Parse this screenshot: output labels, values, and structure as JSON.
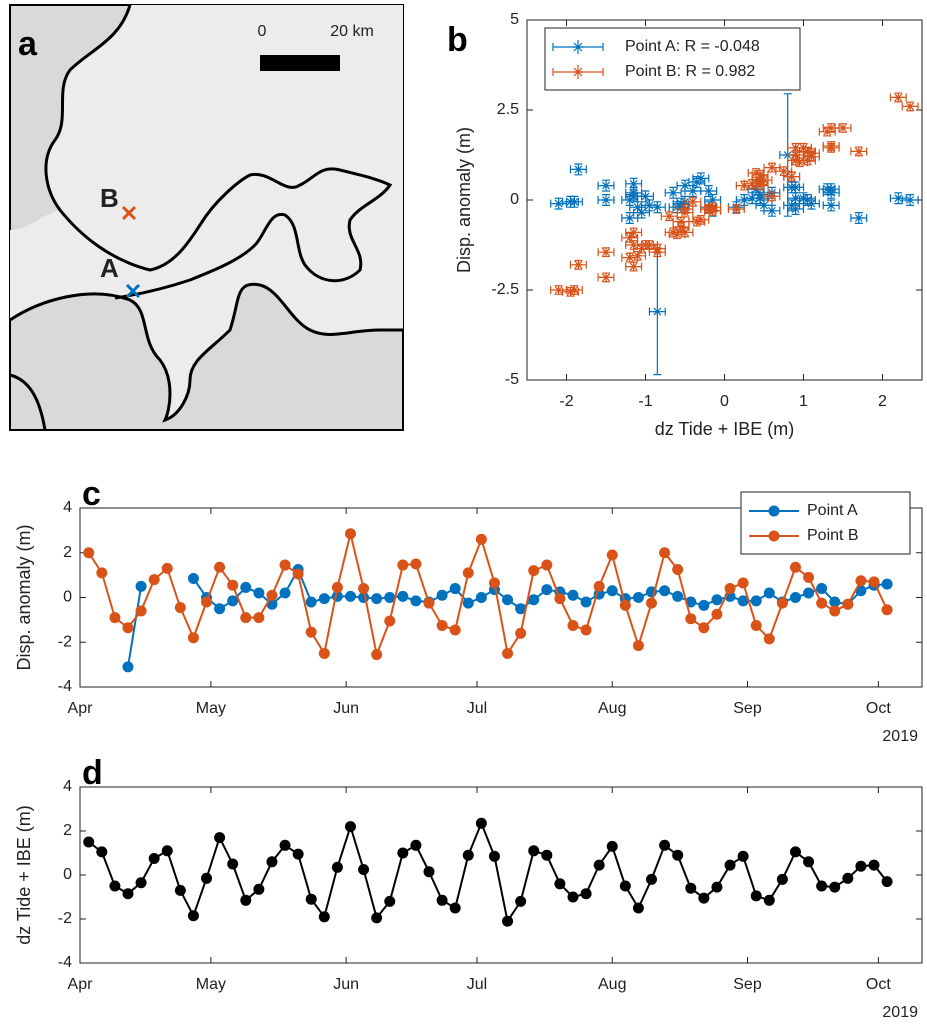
{
  "map": {
    "label": "a",
    "scale_labels": [
      "0",
      "20 km"
    ],
    "points": [
      {
        "name": "B",
        "color": "#d95319"
      },
      {
        "name": "A",
        "color": "#0072bd"
      }
    ]
  },
  "chart_data": [
    {
      "type": "scatter",
      "label": "b",
      "xlabel": "dz Tide + IBE (m)",
      "ylabel": "Disp. anomaly (m)",
      "xlim": [
        -2.5,
        2.5
      ],
      "ylim": [
        -5,
        5
      ],
      "xticks": [
        -2,
        -1,
        0,
        1,
        2
      ],
      "yticks": [
        -5,
        -2.5,
        0,
        2.5,
        5
      ],
      "legend": "upper left",
      "series": [
        {
          "name": "Point A: R = -0.048",
          "color": "#0072bd",
          "xerr": 0.1,
          "x": [
            -0.85,
            -0.35,
            -1.85,
            -0.15,
            1.7,
            0.5,
            -1.15,
            -0.65,
            0.6,
            1.35,
            0.8,
            -1.1,
            -1.9,
            0.35,
            2.2,
            0.25,
            -1.95,
            -1.2,
            1.0,
            1.35,
            0.15,
            -1.15,
            -1.5,
            0.9,
            2.35,
            0.85,
            -2.1,
            -1.2,
            1.1,
            0.9,
            -0.4,
            -1.0,
            -0.85,
            0.45,
            1.3,
            -0.5,
            -1.5,
            -0.2,
            1.35,
            0.9,
            -0.6,
            -1.05,
            -0.55,
            0.45,
            0.85,
            -0.95,
            -1.15,
            -0.2,
            1.05,
            0.6,
            -0.5,
            -0.55,
            -0.15,
            0.4,
            0.45,
            -0.3
          ],
          "values": [
            -3.1,
            0.5,
            0.85,
            0.0,
            -0.5,
            -0.15,
            0.45,
            0.2,
            -0.3,
            0.2,
            1.25,
            -0.2,
            -0.05,
            0.05,
            0.05,
            0.0,
            -0.05,
            0.0,
            0.05,
            -0.15,
            -0.2,
            0.1,
            0.4,
            -0.25,
            0.0,
            0.35,
            -0.1,
            -0.5,
            -0.1,
            0.35,
            0.25,
            0.1,
            -0.2,
            0.15,
            0.3,
            -0.05,
            0.0,
            0.25,
            0.3,
            0.05,
            -0.2,
            -0.35,
            -0.1,
            0.05,
            -0.15,
            -0.15,
            0.2,
            -0.2,
            0.0,
            0.2,
            0.4,
            -0.2,
            -0.3,
            0.3,
            0.55,
            0.6
          ],
          "yerr": [
            1.75,
            0.15,
            0.15,
            0.15,
            0.15,
            0.15,
            0.15,
            0.15,
            0.15,
            0.15,
            1.7,
            0.15,
            0.15,
            0.15,
            0.15,
            0.15,
            0.15,
            0.15,
            0.15,
            0.15,
            0.15,
            0.15,
            0.15,
            0.15,
            0.15,
            0.15,
            0.15,
            0.15,
            0.15,
            0.15,
            0.15,
            0.15,
            0.15,
            0.15,
            0.15,
            0.15,
            0.15,
            0.15,
            0.15,
            0.15,
            0.15,
            0.15,
            0.15,
            0.15,
            0.15,
            0.15,
            0.15,
            0.15,
            0.15,
            0.15,
            0.15,
            0.15,
            0.15,
            0.15,
            0.15,
            0.15
          ]
        },
        {
          "name": "Point B: R = 0.982",
          "color": "#d95319",
          "xerr": 0.1,
          "yerr": 0.12,
          "x": [
            1.5,
            1.05,
            -0.5,
            -0.85,
            -0.35,
            0.75,
            1.1,
            -0.7,
            -1.85,
            -0.15,
            1.7,
            0.5,
            -1.15,
            -0.65,
            0.6,
            1.35,
            0.95,
            -1.1,
            -1.9,
            0.35,
            2.2,
            0.25,
            -1.95,
            -1.2,
            1.0,
            1.35,
            0.15,
            -1.15,
            -1.5,
            0.9,
            2.35,
            0.85,
            -2.1,
            -1.2,
            1.1,
            0.9,
            -0.4,
            -1.0,
            -0.85,
            0.45,
            1.3,
            -0.5,
            -1.5,
            -0.2,
            1.35,
            0.9,
            -0.6,
            -1.05,
            -0.55,
            0.45,
            0.85,
            -0.95,
            -1.15,
            -0.2,
            1.05,
            0.6,
            -0.5,
            -0.55,
            -0.15,
            0.4,
            0.45,
            -0.3
          ],
          "values": [
            2.0,
            1.1,
            -0.9,
            -1.35,
            -0.6,
            0.8,
            1.3,
            -0.45,
            -1.8,
            -0.2,
            1.35,
            0.55,
            -0.9,
            -0.9,
            0.1,
            1.45,
            1.05,
            -1.55,
            -2.5,
            0.45,
            2.85,
            0.4,
            -2.55,
            -1.05,
            1.45,
            1.5,
            -0.25,
            -1.25,
            -1.45,
            1.1,
            2.6,
            0.65,
            -2.5,
            -1.6,
            1.2,
            1.45,
            -0.05,
            -1.25,
            -1.45,
            0.5,
            1.9,
            -0.35,
            -2.15,
            -0.25,
            2.0,
            1.25,
            -0.95,
            -1.35,
            -0.75,
            0.4,
            0.65,
            -1.25,
            -1.85,
            -0.25,
            1.35,
            0.9,
            -0.25,
            -0.6,
            -0.3,
            0.75,
            0.7,
            -0.55
          ]
        }
      ]
    },
    {
      "type": "line",
      "label": "c",
      "ylabel": "Disp. anomaly (m)",
      "year_label": "2019",
      "marker": "o",
      "legend": "upper right",
      "xlim": [
        0,
        193
      ],
      "ylim": [
        -4,
        4
      ],
      "yticks": [
        -4,
        -2,
        0,
        2,
        4
      ],
      "xticks": [
        {
          "value": 0,
          "label": "Apr"
        },
        {
          "value": 30,
          "label": "May"
        },
        {
          "value": 61,
          "label": "Jun"
        },
        {
          "value": 91,
          "label": "Jul"
        },
        {
          "value": 122,
          "label": "Aug"
        },
        {
          "value": 153,
          "label": "Sep"
        },
        {
          "value": 183,
          "label": "Oct"
        }
      ],
      "x": [
        2,
        5,
        8,
        11,
        14,
        17,
        20,
        23,
        26,
        29,
        32,
        35,
        38,
        41,
        44,
        47,
        50,
        53,
        56,
        59,
        62,
        65,
        68,
        71,
        74,
        77,
        80,
        83,
        86,
        89,
        92,
        95,
        98,
        101,
        104,
        107,
        110,
        113,
        116,
        119,
        122,
        125,
        128,
        131,
        134,
        137,
        140,
        143,
        146,
        149,
        152,
        155,
        158,
        161,
        164,
        167,
        170,
        173,
        176,
        179,
        182,
        185
      ],
      "series": [
        {
          "name": "Point A",
          "color": "#0072bd",
          "values": [
            null,
            null,
            null,
            -3.1,
            0.5,
            null,
            null,
            null,
            0.85,
            0.0,
            -0.5,
            -0.15,
            0.45,
            0.2,
            -0.3,
            0.2,
            1.25,
            -0.2,
            -0.05,
            0.05,
            0.05,
            0.0,
            -0.05,
            0.0,
            0.05,
            -0.15,
            -0.2,
            0.1,
            0.4,
            -0.25,
            0.0,
            0.35,
            -0.1,
            -0.5,
            -0.1,
            0.35,
            0.25,
            0.1,
            -0.2,
            0.15,
            0.3,
            -0.05,
            0.0,
            0.25,
            0.3,
            0.05,
            -0.2,
            -0.35,
            -0.1,
            0.05,
            -0.15,
            -0.15,
            0.2,
            -0.2,
            0.0,
            0.2,
            0.4,
            -0.2,
            -0.3,
            0.3,
            0.55,
            0.6
          ]
        },
        {
          "name": "Point B",
          "color": "#d95319",
          "values": [
            2.0,
            1.1,
            -0.9,
            -1.35,
            -0.6,
            0.8,
            1.3,
            -0.45,
            -1.8,
            -0.2,
            1.35,
            0.55,
            -0.9,
            -0.9,
            0.1,
            1.45,
            1.05,
            -1.55,
            -2.5,
            0.45,
            2.85,
            0.4,
            -2.55,
            -1.05,
            1.45,
            1.5,
            -0.25,
            -1.25,
            -1.45,
            1.1,
            2.6,
            0.65,
            -2.5,
            -1.6,
            1.2,
            1.45,
            -0.05,
            -1.25,
            -1.45,
            0.5,
            1.9,
            -0.35,
            -2.15,
            -0.25,
            2.0,
            1.25,
            -0.95,
            -1.35,
            -0.75,
            0.4,
            0.65,
            -1.25,
            -1.85,
            -0.25,
            1.35,
            0.9,
            -0.25,
            -0.6,
            -0.3,
            0.75,
            0.7,
            -0.55
          ]
        }
      ]
    },
    {
      "type": "line",
      "label": "d",
      "ylabel": "dz Tide + IBE (m)",
      "year_label": "2019",
      "marker": "o",
      "xlim": [
        0,
        193
      ],
      "ylim": [
        -4,
        4
      ],
      "yticks": [
        -4,
        -2,
        0,
        2,
        4
      ],
      "xticks": [
        {
          "value": 0,
          "label": "Apr"
        },
        {
          "value": 30,
          "label": "May"
        },
        {
          "value": 61,
          "label": "Jun"
        },
        {
          "value": 91,
          "label": "Jul"
        },
        {
          "value": 122,
          "label": "Aug"
        },
        {
          "value": 153,
          "label": "Sep"
        },
        {
          "value": 183,
          "label": "Oct"
        }
      ],
      "x": [
        2,
        5,
        8,
        11,
        14,
        17,
        20,
        23,
        26,
        29,
        32,
        35,
        38,
        41,
        44,
        47,
        50,
        53,
        56,
        59,
        62,
        65,
        68,
        71,
        74,
        77,
        80,
        83,
        86,
        89,
        92,
        95,
        98,
        101,
        104,
        107,
        110,
        113,
        116,
        119,
        122,
        125,
        128,
        131,
        134,
        137,
        140,
        143,
        146,
        149,
        152,
        155,
        158,
        161,
        164,
        167,
        170,
        173,
        176,
        179,
        182,
        185
      ],
      "series": [
        {
          "color": "#000000",
          "values": [
            1.5,
            1.05,
            -0.5,
            -0.85,
            -0.35,
            0.75,
            1.1,
            -0.7,
            -1.85,
            -0.15,
            1.7,
            0.5,
            -1.15,
            -0.65,
            0.6,
            1.35,
            0.95,
            -1.1,
            -1.9,
            0.35,
            2.2,
            0.25,
            -1.95,
            -1.2,
            1.0,
            1.35,
            0.15,
            -1.15,
            -1.5,
            0.9,
            2.35,
            0.85,
            -2.1,
            -1.2,
            1.1,
            0.9,
            -0.4,
            -1.0,
            -0.85,
            0.45,
            1.3,
            -0.5,
            -1.5,
            -0.2,
            1.35,
            0.9,
            -0.6,
            -1.05,
            -0.55,
            0.45,
            0.85,
            -0.95,
            -1.15,
            -0.2,
            1.05,
            0.6,
            -0.5,
            -0.55,
            -0.15,
            0.4,
            0.45,
            -0.3
          ]
        }
      ]
    }
  ]
}
